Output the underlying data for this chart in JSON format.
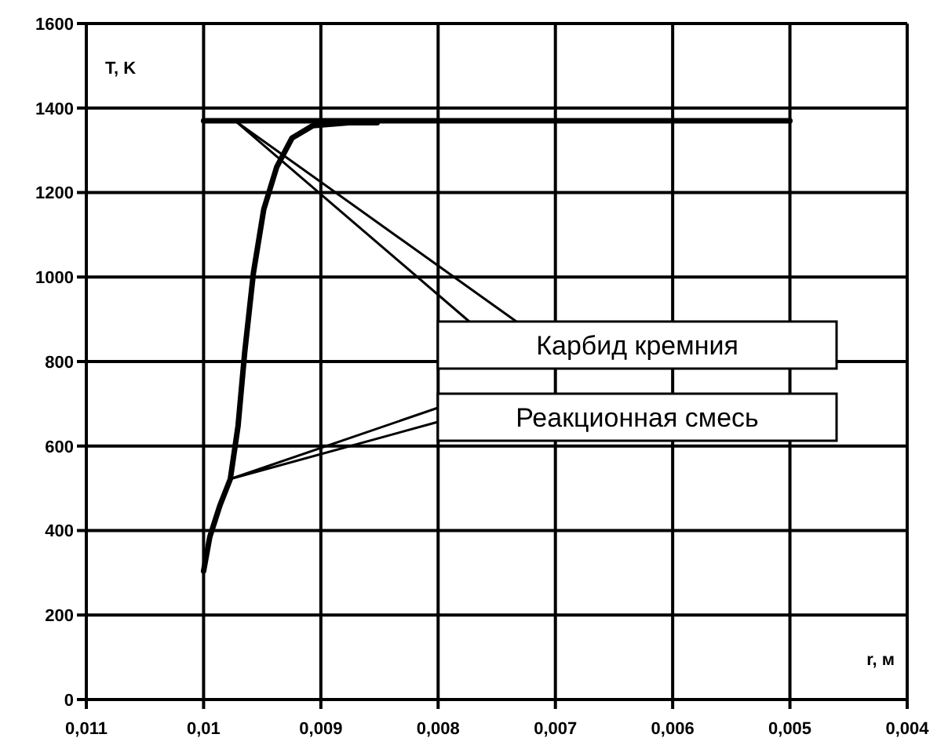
{
  "chart_data": {
    "type": "line",
    "xlabel": "r, м",
    "ylabel": "T, K",
    "xlim": [
      0.011,
      0.004
    ],
    "xticks": [
      {
        "value": 0.011,
        "label": "0,011"
      },
      {
        "value": 0.01,
        "label": "0,01"
      },
      {
        "value": 0.009,
        "label": "0,009"
      },
      {
        "value": 0.008,
        "label": "0,008"
      },
      {
        "value": 0.007,
        "label": "0,007"
      },
      {
        "value": 0.006,
        "label": "0,006"
      },
      {
        "value": 0.005,
        "label": "0,005"
      },
      {
        "value": 0.004,
        "label": "0,004"
      }
    ],
    "ylim": [
      0,
      1600
    ],
    "yticks": [
      0,
      200,
      400,
      600,
      800,
      1000,
      1200,
      1400,
      1600
    ],
    "grid": true,
    "legend": false,
    "marker": "none",
    "line_style": "solid",
    "series": [
      {
        "name": "Карбид кремния",
        "color": "#000000",
        "x": [
          0.01,
          0.005
        ],
        "values": [
          1370,
          1370
        ]
      },
      {
        "name": "Реакционная смесь",
        "color": "#000000",
        "x": [
          0.01,
          0.009947,
          0.00986,
          0.009772,
          0.009706,
          0.009649,
          0.009575,
          0.009487,
          0.009377,
          0.009246,
          0.00907,
          0.008763,
          0.00852
        ],
        "values": [
          304,
          385,
          460,
          522,
          648,
          823,
          1010,
          1160,
          1260,
          1329,
          1358,
          1365,
          1365
        ]
      }
    ]
  }
}
